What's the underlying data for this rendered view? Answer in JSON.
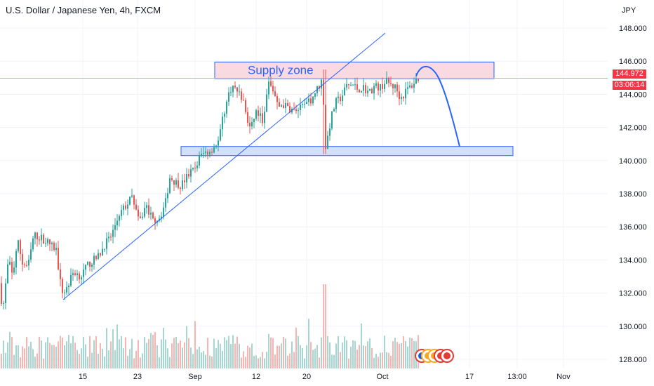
{
  "title": "U.S. Dollar / Japanese Yen, 4h, FXCM",
  "currency": "JPY",
  "last_price": "144.972",
  "countdown": "03:06:14",
  "annotation": "Supply zone",
  "colors": {
    "up": "#26a69a",
    "down": "#ef5350",
    "vol_up": "#a5d6cf",
    "vol_down": "#f7b4b1",
    "trendline": "#2962ff",
    "supply_fill": "#f9d3dc",
    "demand_fill": "#c9dcfb",
    "zone_border": "#2962ff",
    "price_tag": "#f23645",
    "price_line": "#f7a1a7",
    "projection": "#2962ff"
  },
  "chart_data": {
    "type": "candlestick",
    "title": "U.S. Dollar / Japanese Yen, 4h, FXCM",
    "y_axis": {
      "unit": "JPY",
      "range": [
        127.5,
        149.0
      ],
      "ticks": [
        "128.000",
        "130.000",
        "132.000",
        "134.000",
        "136.000",
        "138.000",
        "140.000",
        "142.000",
        "144.000",
        "146.000",
        "148.000"
      ]
    },
    "x_axis": {
      "tick_labels": [
        "15",
        "23",
        "Sep",
        "12",
        "20",
        "Oct",
        "17",
        "13:00",
        "Nov"
      ]
    },
    "price_path": [
      [
        0,
        132.2
      ],
      [
        4,
        131.0
      ],
      [
        12,
        134.0
      ],
      [
        18,
        133.0
      ],
      [
        25,
        135.2
      ],
      [
        32,
        133.8
      ],
      [
        40,
        133.6
      ],
      [
        48,
        135.5
      ],
      [
        60,
        135.3
      ],
      [
        70,
        135.0
      ],
      [
        80,
        134.6
      ],
      [
        88,
        132.0
      ],
      [
        95,
        132.3
      ],
      [
        105,
        133.3
      ],
      [
        115,
        133.0
      ],
      [
        125,
        133.7
      ],
      [
        140,
        134.2
      ],
      [
        150,
        135.0
      ],
      [
        158,
        135.4
      ],
      [
        170,
        136.8
      ],
      [
        180,
        137.3
      ],
      [
        188,
        137.8
      ],
      [
        192,
        137.4
      ],
      [
        198,
        136.2
      ],
      [
        208,
        137.3
      ],
      [
        218,
        136.4
      ],
      [
        228,
        136.6
      ],
      [
        236,
        137.5
      ],
      [
        242,
        139.0
      ],
      [
        250,
        138.7
      ],
      [
        258,
        138.5
      ],
      [
        266,
        139.0
      ],
      [
        272,
        139.3
      ],
      [
        278,
        139.5
      ],
      [
        284,
        140.2
      ],
      [
        292,
        140.5
      ],
      [
        300,
        140.6
      ],
      [
        306,
        140.9
      ],
      [
        312,
        141.2
      ],
      [
        318,
        142.7
      ],
      [
        324,
        143.7
      ],
      [
        330,
        144.5
      ],
      [
        336,
        144.3
      ],
      [
        342,
        144.0
      ],
      [
        348,
        143.4
      ],
      [
        354,
        142.1
      ],
      [
        358,
        141.9
      ],
      [
        364,
        143.0
      ],
      [
        370,
        142.7
      ],
      [
        376,
        142.4
      ],
      [
        382,
        144.7
      ],
      [
        390,
        144.2
      ],
      [
        396,
        143.2
      ],
      [
        402,
        143.4
      ],
      [
        410,
        143.2
      ],
      [
        418,
        143.0
      ],
      [
        426,
        143.1
      ],
      [
        434,
        143.3
      ],
      [
        442,
        143.6
      ],
      [
        450,
        144.2
      ],
      [
        456,
        144.6
      ],
      [
        460,
        145.0
      ],
      [
        463,
        140.6
      ],
      [
        466,
        141.2
      ],
      [
        472,
        142.6
      ],
      [
        478,
        143.5
      ],
      [
        486,
        143.8
      ],
      [
        494,
        144.5
      ],
      [
        502,
        144.6
      ],
      [
        510,
        144.3
      ],
      [
        518,
        144.4
      ],
      [
        526,
        144.1
      ],
      [
        534,
        144.5
      ],
      [
        542,
        144.4
      ],
      [
        550,
        144.8
      ],
      [
        556,
        144.6
      ],
      [
        564,
        144.4
      ],
      [
        570,
        143.8
      ],
      [
        574,
        143.9
      ],
      [
        580,
        144.3
      ],
      [
        586,
        144.5
      ],
      [
        592,
        144.8
      ],
      [
        597,
        145.0
      ]
    ],
    "volume_range": [
      0,
      1
    ],
    "last_price": 144.972,
    "drawings": {
      "supply_zone": {
        "label": "Supply zone",
        "price_low": 144.95,
        "price_high": 145.95
      },
      "demand_zone": {
        "price_low": 140.3,
        "price_high": 140.85
      },
      "trendline": {
        "from_price": 131.6,
        "to_price": 147.7
      },
      "projection": {
        "from_price": 145.1,
        "peak_price": 145.5,
        "to_price": 140.85
      }
    }
  }
}
